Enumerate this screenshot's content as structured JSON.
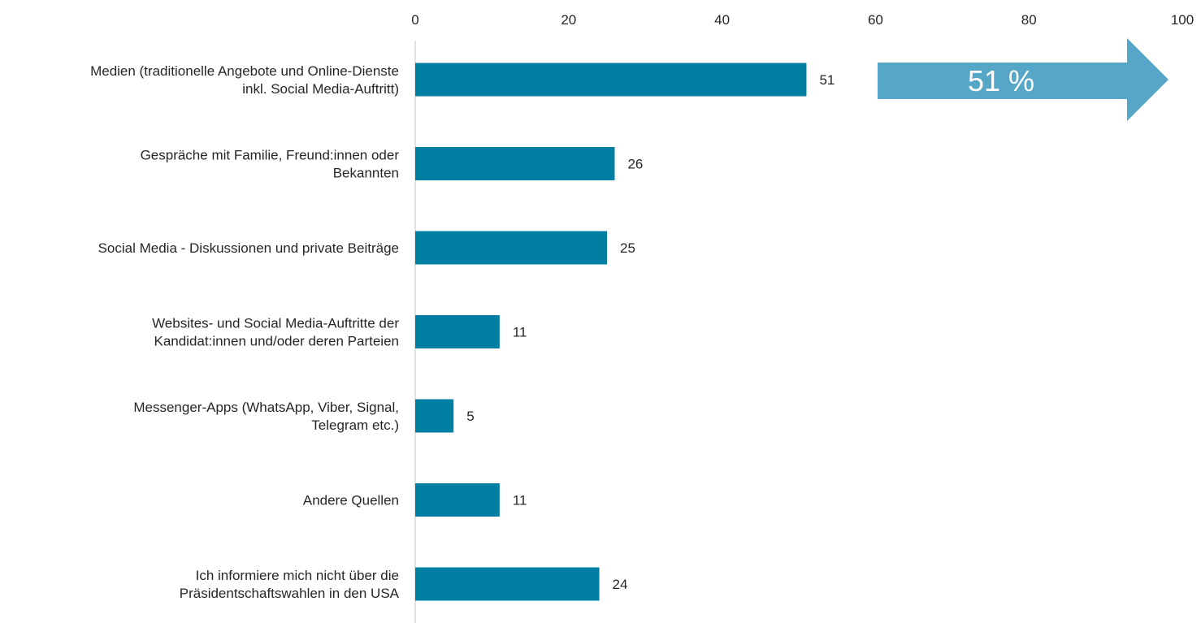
{
  "chart_data": {
    "type": "bar",
    "orientation": "horizontal",
    "categories": [
      [
        "Medien (traditionelle Angebote und Online-Dienste",
        "inkl. Social Media-Auftritt)"
      ],
      [
        "Gespräche mit Familie, Freund:innen oder",
        "Bekannten"
      ],
      [
        "Social Media - Diskussionen und private Beiträge"
      ],
      [
        "Websites- und Social Media-Auftritte der",
        "Kandidat:innen und/oder deren Parteien"
      ],
      [
        "Messenger-Apps (WhatsApp, Viber, Signal,",
        "Telegram etc.)"
      ],
      [
        "Andere Quellen"
      ],
      [
        "Ich informiere mich nicht über die",
        "Präsidentschaftswahlen in den USA"
      ]
    ],
    "values": [
      51,
      26,
      25,
      11,
      5,
      11,
      24
    ],
    "data_labels": [
      "51",
      "26",
      "25",
      "11",
      "5",
      "11",
      "24"
    ],
    "xlim": [
      0,
      100
    ],
    "xticks": [
      0,
      20,
      40,
      60,
      80,
      100
    ],
    "xtick_labels": [
      "0",
      "20",
      "40",
      "60",
      "80",
      "100"
    ],
    "axis_position": "top",
    "grid": false,
    "legend": "none",
    "bar_color": "#007fa3",
    "callout": {
      "text": "51 %",
      "color": "#56a6c7",
      "shape": "right-arrow",
      "placement": "top-right"
    }
  }
}
